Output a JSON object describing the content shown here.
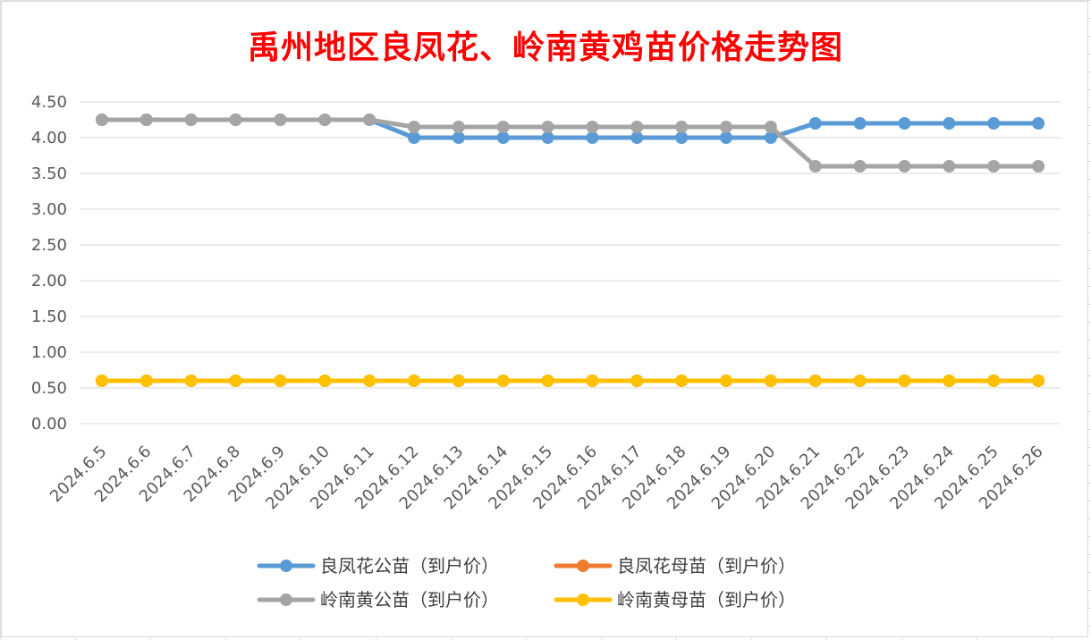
{
  "chart_data": {
    "type": "line",
    "title": "禹州地区良凤花、岭南黄鸡苗价格走势图",
    "title_color": "#ff0000",
    "categories": [
      "2024.6.5",
      "2024.6.6",
      "2024.6.7",
      "2024.6.8",
      "2024.6.9",
      "2024.6.10",
      "2024.6.11",
      "2024.6.12",
      "2024.6.13",
      "2024.6.14",
      "2024.6.15",
      "2024.6.16",
      "2024.6.17",
      "2024.6.18",
      "2024.6.19",
      "2024.6.20",
      "2024.6.21",
      "2024.6.22",
      "2024.6.23",
      "2024.6.24",
      "2024.6.25",
      "2024.6.26"
    ],
    "ylim": [
      0,
      4.5
    ],
    "yticks": [
      "0.00",
      "0.50",
      "1.00",
      "1.50",
      "2.00",
      "2.50",
      "3.00",
      "3.50",
      "4.00",
      "4.50"
    ],
    "grid": true,
    "legend_position": "bottom",
    "series": [
      {
        "name": "良凤花公苗（到户价）",
        "color": "#5b9bd5",
        "values": [
          4.25,
          4.25,
          4.25,
          4.25,
          4.25,
          4.25,
          4.25,
          4.0,
          4.0,
          4.0,
          4.0,
          4.0,
          4.0,
          4.0,
          4.0,
          4.0,
          4.2,
          4.2,
          4.2,
          4.2,
          4.2,
          4.2
        ]
      },
      {
        "name": "良凤花母苗（到户价）",
        "color": "#ed7d31",
        "values": [
          0.6,
          0.6,
          0.6,
          0.6,
          0.6,
          0.6,
          0.6,
          0.6,
          0.6,
          0.6,
          0.6,
          0.6,
          0.6,
          0.6,
          0.6,
          0.6,
          0.6,
          0.6,
          0.6,
          0.6,
          0.6,
          0.6
        ]
      },
      {
        "name": "岭南黄公苗（到户价）",
        "color": "#a5a5a5",
        "values": [
          4.25,
          4.25,
          4.25,
          4.25,
          4.25,
          4.25,
          4.25,
          4.15,
          4.15,
          4.15,
          4.15,
          4.15,
          4.15,
          4.15,
          4.15,
          4.15,
          3.6,
          3.6,
          3.6,
          3.6,
          3.6,
          3.6
        ]
      },
      {
        "name": "岭南黄母苗（到户价）",
        "color": "#ffc000",
        "values": [
          0.6,
          0.6,
          0.6,
          0.6,
          0.6,
          0.6,
          0.6,
          0.6,
          0.6,
          0.6,
          0.6,
          0.6,
          0.6,
          0.6,
          0.6,
          0.6,
          0.6,
          0.6,
          0.6,
          0.6,
          0.6,
          0.6
        ]
      }
    ]
  }
}
